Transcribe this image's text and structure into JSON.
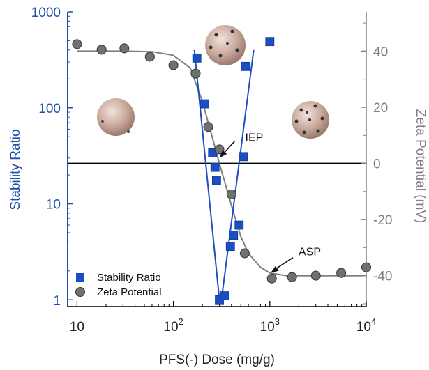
{
  "chart_data": {
    "type": "scatter",
    "x_axis": {
      "label": "PFS(-) Dose (mg/g)",
      "scale": "log",
      "range": [
        8,
        10000
      ],
      "ticks": [
        {
          "value": 10,
          "base": "10",
          "exp": ""
        },
        {
          "value": 100,
          "base": "10",
          "exp": "2"
        },
        {
          "value": 1000,
          "base": "10",
          "exp": "3"
        },
        {
          "value": 10000,
          "base": "10",
          "exp": "4"
        }
      ]
    },
    "y_left": {
      "label": "Stability Ratio",
      "scale": "log",
      "range": [
        0.85,
        1000
      ],
      "ticks": [
        {
          "value": 1,
          "label": "1"
        },
        {
          "value": 10,
          "label": "10"
        },
        {
          "value": 100,
          "label": "100"
        },
        {
          "value": 1000,
          "label": "1000"
        }
      ],
      "color": "#1f4fa8"
    },
    "y_right": {
      "label": "Zeta Potential (mV)",
      "scale": "linear",
      "range": [
        -51,
        54
      ],
      "ticks": [
        {
          "value": 40,
          "label": "40"
        },
        {
          "value": 20,
          "label": "20"
        },
        {
          "value": 0,
          "label": "0"
        },
        {
          "value": -20,
          "label": "-20"
        },
        {
          "value": -40,
          "label": "-40"
        }
      ],
      "color": "#7f7f7f"
    },
    "series": [
      {
        "name": "Stability Ratio",
        "axis": "left",
        "marker": "square",
        "color": "#1a4fc4",
        "points": [
          {
            "x": 175,
            "y": 330
          },
          {
            "x": 210,
            "y": 110
          },
          {
            "x": 255,
            "y": 34
          },
          {
            "x": 270,
            "y": 24
          },
          {
            "x": 280,
            "y": 17.5
          },
          {
            "x": 300,
            "y": 1
          },
          {
            "x": 340,
            "y": 1.1
          },
          {
            "x": 390,
            "y": 3.6
          },
          {
            "x": 420,
            "y": 4.7
          },
          {
            "x": 480,
            "y": 6
          },
          {
            "x": 530,
            "y": 31
          },
          {
            "x": 560,
            "y": 270
          },
          {
            "x": 1000,
            "y": 490
          }
        ]
      },
      {
        "name": "Zeta Potential",
        "axis": "right",
        "marker": "circle",
        "color": "#707070",
        "points": [
          {
            "x": 10,
            "y": 42.5
          },
          {
            "x": 18,
            "y": 40.5
          },
          {
            "x": 31,
            "y": 41
          },
          {
            "x": 57,
            "y": 38
          },
          {
            "x": 100,
            "y": 35
          },
          {
            "x": 170,
            "y": 32
          },
          {
            "x": 230,
            "y": 13
          },
          {
            "x": 300,
            "y": 5
          },
          {
            "x": 400,
            "y": -11
          },
          {
            "x": 550,
            "y": -32
          },
          {
            "x": 1050,
            "y": -41
          },
          {
            "x": 1700,
            "y": -40.5
          },
          {
            "x": 3000,
            "y": -40
          },
          {
            "x": 5500,
            "y": -39
          },
          {
            "x": 10000,
            "y": -37
          }
        ]
      }
    ],
    "fit_curves": [
      {
        "axis": "right",
        "color": "#808080",
        "points": [
          [
            10,
            40
          ],
          [
            30,
            40
          ],
          [
            60,
            39.8
          ],
          [
            100,
            38.5
          ],
          [
            150,
            34
          ],
          [
            200,
            22
          ],
          [
            250,
            10
          ],
          [
            300,
            0
          ],
          [
            350,
            -8
          ],
          [
            400,
            -15
          ],
          [
            500,
            -26
          ],
          [
            600,
            -32
          ],
          [
            800,
            -37
          ],
          [
            1000,
            -39
          ],
          [
            1500,
            -40
          ],
          [
            3000,
            -40
          ],
          [
            9000,
            -40
          ]
        ]
      }
    ],
    "fit_lines": [
      {
        "axis": "left",
        "color": "#1a4fc4",
        "points": [
          [
            165,
            400
          ],
          [
            300,
            1
          ]
        ]
      },
      {
        "axis": "left",
        "color": "#1a4fc4",
        "points": [
          [
            315,
            1
          ],
          [
            680,
            400
          ]
        ]
      }
    ],
    "reference_line": {
      "axis": "right",
      "value": 0,
      "color": "#000000"
    },
    "annotations": [
      {
        "text": "IEP",
        "arrow_to": {
          "x": 300,
          "y": 2
        },
        "axis": "right"
      },
      {
        "text": "ASP",
        "arrow_to": {
          "x": 1020,
          "y": -39
        },
        "axis": "right"
      }
    ],
    "legend": {
      "placement": "bottom-left",
      "items": [
        {
          "label": "Stability Ratio",
          "marker": "square",
          "color": "#1a4fc4"
        },
        {
          "label": "Zeta Potential",
          "marker": "circle",
          "color": "#707070"
        }
      ]
    },
    "grid": false,
    "particle_illustrations": [
      "bare-particle",
      "partially-coated-particle",
      "fully-coated-particle"
    ]
  }
}
